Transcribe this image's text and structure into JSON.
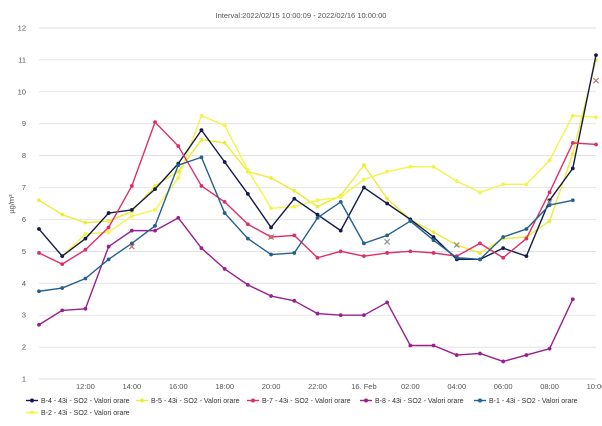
{
  "chart_data": {
    "type": "line",
    "title": "Interval:2022/02/15 10:00:09 - 2022/02/16 10:00:00",
    "ylabel": "µg/m³",
    "xlabel": "",
    "ylim": [
      1,
      12
    ],
    "yticks": [
      1,
      2,
      3,
      4,
      5,
      6,
      7,
      8,
      9,
      10,
      11,
      12
    ],
    "grid": true,
    "legend_position": "bottom",
    "x": [
      "10:00",
      "11:00",
      "12:00",
      "13:00",
      "14:00",
      "15:00",
      "16:00",
      "17:00",
      "18:00",
      "19:00",
      "20:00",
      "21:00",
      "22:00",
      "23:00",
      "00:00",
      "01:00",
      "02:00",
      "03:00",
      "04:00",
      "05:00",
      "06:00",
      "07:00",
      "08:00",
      "09:00",
      "10:00"
    ],
    "xticks": [
      {
        "index": 2,
        "label": "12:00"
      },
      {
        "index": 4,
        "label": "14:00"
      },
      {
        "index": 6,
        "label": "16:00"
      },
      {
        "index": 8,
        "label": "18:00"
      },
      {
        "index": 10,
        "label": "20:00"
      },
      {
        "index": 12,
        "label": "22:00"
      },
      {
        "index": 14,
        "label": "16. Feb"
      },
      {
        "index": 16,
        "label": "02:00"
      },
      {
        "index": 18,
        "label": "04:00"
      },
      {
        "index": 20,
        "label": "06:00"
      },
      {
        "index": 22,
        "label": "08:00"
      },
      {
        "index": 24,
        "label": "10:00"
      }
    ],
    "series": [
      {
        "name": "B-5 - 43i - SO2 - Valori orare",
        "color": "#ecec3a",
        "marker": "circle",
        "values": [
          6.6,
          6.15,
          5.9,
          5.95,
          6.25,
          7.05,
          7.5,
          8.5,
          8.4,
          7.5,
          7.3,
          6.9,
          6.4,
          6.75,
          7.7,
          6.65,
          6.0,
          5.6,
          5.2,
          4.95,
          5.4,
          5.45,
          5.95,
          8.05,
          11.0
        ]
      },
      {
        "name": "B-2 - 43i - SO2 - Valori orare",
        "color": "#f4f44a",
        "marker": "circle",
        "values": [
          null,
          4.85,
          5.55,
          5.6,
          6.1,
          6.3,
          7.3,
          9.25,
          8.95,
          7.55,
          6.35,
          6.4,
          6.6,
          6.7,
          7.25,
          7.5,
          7.65,
          7.65,
          7.2,
          6.85,
          7.1,
          7.1,
          7.85,
          9.25,
          9.2
        ]
      },
      {
        "name": "B-4 - 43i - SO2 - Valori orare",
        "color": "#141a4a",
        "marker": "circle",
        "values": [
          5.7,
          4.85,
          5.4,
          6.2,
          6.3,
          6.95,
          7.75,
          8.8,
          7.8,
          6.8,
          5.75,
          6.65,
          6.15,
          5.65,
          7.0,
          6.5,
          6.0,
          5.45,
          4.75,
          4.75,
          5.1,
          4.85,
          6.6,
          7.6,
          11.15
        ]
      },
      {
        "name": "B-7 - 43i - SO2 - Valori orare",
        "color": "#dc2f6a",
        "marker": "circle",
        "values": [
          4.95,
          4.6,
          5.05,
          5.75,
          7.05,
          9.05,
          8.3,
          7.05,
          6.55,
          5.85,
          5.45,
          5.5,
          4.8,
          5.0,
          4.85,
          4.95,
          5.0,
          4.95,
          4.85,
          5.25,
          4.8,
          5.4,
          6.85,
          8.4,
          8.35
        ]
      },
      {
        "name": "B-8 - 43i - SO2 - Valori orare",
        "color": "#98208f",
        "marker": "circle",
        "values": [
          2.7,
          3.15,
          3.2,
          5.15,
          5.65,
          5.65,
          6.05,
          5.1,
          4.45,
          3.95,
          3.6,
          3.45,
          3.05,
          3.0,
          3.0,
          3.4,
          2.05,
          2.05,
          1.75,
          1.8,
          1.55,
          1.75,
          1.95,
          3.5,
          null
        ]
      },
      {
        "name": "B-1 - 43i - SO2 - Valori orare",
        "color": "#24608f",
        "marker": "circle",
        "values": [
          3.75,
          3.85,
          4.15,
          4.75,
          5.25,
          5.8,
          7.7,
          7.95,
          6.2,
          5.4,
          4.9,
          4.95,
          6.05,
          6.55,
          5.25,
          5.5,
          5.95,
          5.35,
          4.8,
          4.75,
          5.45,
          5.7,
          6.45,
          6.6,
          null
        ]
      }
    ],
    "annotations": [
      {
        "x_index": 4,
        "y": 5.15,
        "shape": "x",
        "color": "#c07070"
      },
      {
        "x_index": 10,
        "y": 5.45,
        "shape": "x",
        "color": "#c07070"
      },
      {
        "x_index": 15,
        "y": 5.3,
        "shape": "x",
        "color": "#909090"
      },
      {
        "x_index": 18,
        "y": 5.2,
        "shape": "x",
        "color": "#909090"
      },
      {
        "x_index": 22,
        "y": 6.55,
        "shape": "x",
        "color": "#909090"
      },
      {
        "x_index": 24,
        "y": 10.35,
        "shape": "x",
        "color": "#c07070"
      }
    ],
    "legend": [
      {
        "series_index": 2,
        "label": "B-4 - 43i - SO2 - Valori orare"
      },
      {
        "series_index": 0,
        "label": "B-5 - 43i - SO2 - Valori orare"
      },
      {
        "series_index": 3,
        "label": "B-7 - 43i - SO2 - Valori orare"
      },
      {
        "series_index": 4,
        "label": "B-8 - 43i - SO2 - Valori orare"
      },
      {
        "series_index": 5,
        "label": "B-1 - 43i - SO2 - Valori orare"
      },
      {
        "series_index": 1,
        "label": "B-2 - 43i - SO2 - Valori orare"
      }
    ]
  }
}
